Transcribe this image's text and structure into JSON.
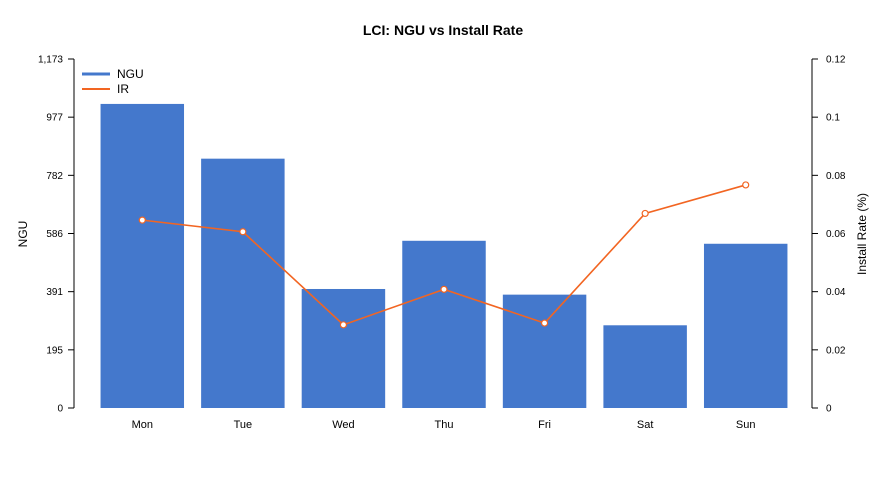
{
  "chart_data": {
    "type": "bar",
    "title": "LCI: NGU vs Install Rate",
    "categories": [
      "Mon",
      "Tue",
      "Wed",
      "Thu",
      "Fri",
      "Sat",
      "Sun"
    ],
    "series": [
      {
        "name": "NGU",
        "type": "bar",
        "axis": "left",
        "color": "#4478cc",
        "values": [
          1022,
          838,
          400,
          562,
          381,
          278,
          552
        ]
      },
      {
        "name": "IR",
        "type": "line",
        "axis": "right",
        "color": "#f26522",
        "values": [
          0.0646,
          0.0606,
          0.0286,
          0.0408,
          0.0292,
          0.0669,
          0.0767
        ]
      }
    ],
    "ylabel": "NGU",
    "y2label": "Install Rate (%)",
    "ylim": [
      0,
      1173
    ],
    "y2lim": [
      0,
      0.12
    ],
    "yticks": [
      "0",
      "195",
      "391",
      "586",
      "782",
      "977",
      "1,173"
    ],
    "y2ticks": [
      "0",
      "0.02",
      "0.04",
      "0.06",
      "0.08",
      "0.1",
      "0.12"
    ],
    "grid": false,
    "legend_position": "top-left"
  }
}
